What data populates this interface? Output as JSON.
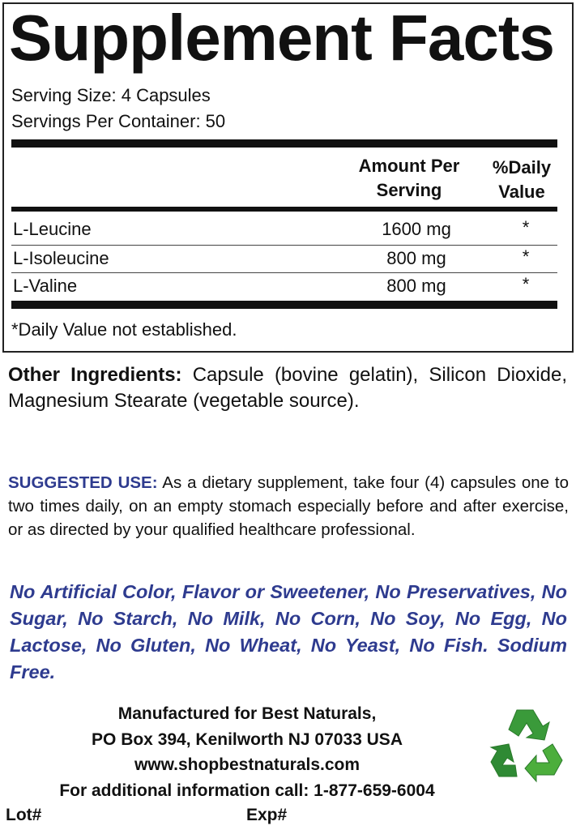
{
  "facts": {
    "title": "Supplement Facts",
    "serving_size": "Serving Size: 4 Capsules",
    "servings_per_container": "Servings Per Container: 50",
    "col_amount": [
      "Amount Per",
      "Serving"
    ],
    "col_daily": [
      "%Daily",
      "Value"
    ],
    "rows": [
      {
        "name": "L-Leucine",
        "amount": "1600 mg",
        "dv": "*"
      },
      {
        "name": "L-Isoleucine",
        "amount": "800 mg",
        "dv": "*"
      },
      {
        "name": "L-Valine",
        "amount": "800 mg",
        "dv": "*"
      }
    ],
    "footnote": "*Daily Value not established."
  },
  "other_ingredients": {
    "label": "Other Ingredients:",
    "text": " Capsule (bovine gelatin), Silicon Dioxide, Magnesium Stearate (vegetable source)."
  },
  "suggested_use": {
    "label": "SUGGESTED USE:",
    "text": " As a dietary supplement, take four (4) capsules one to two times daily, on an empty stomach especially before and after exercise, or as directed by your qualified healthcare professional."
  },
  "free_from": "No Artificial Color, Flavor or Sweetener, No Preservatives, No Sugar, No Starch, No Milk, No Corn, No Soy, No Egg, No Lactose, No Gluten, No Wheat, No Yeast, No Fish. Sodium Free.",
  "manufacturer": {
    "line1": "Manufactured for Best Naturals,",
    "line2": "PO Box 394, Kenilworth NJ 07033 USA",
    "website": "www.shopbestnaturals.com",
    "phone_line": "For additional information call: 1-877-659-6004"
  },
  "lot_label": "Lot#",
  "exp_label": "Exp#",
  "colors": {
    "accent_blue": "#2e3b8f",
    "recycle_green": "#3a9a3a"
  },
  "icons": {
    "recycle": "recycle-icon"
  }
}
